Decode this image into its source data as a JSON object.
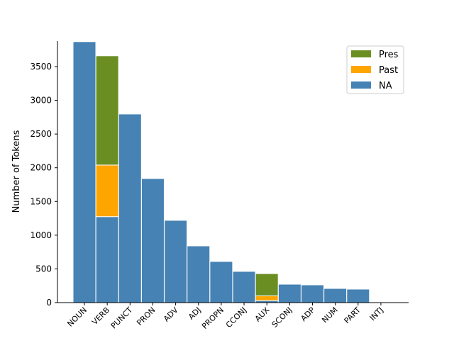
{
  "chart_data": {
    "type": "bar",
    "stacked": true,
    "title": "",
    "xlabel": "",
    "ylabel": "Number of Tokens",
    "ylim": [
      0,
      3870
    ],
    "yticks": [
      0,
      500,
      1000,
      1500,
      2000,
      2500,
      3000,
      3500
    ],
    "categories": [
      "NOUN",
      "VERB",
      "PUNCT",
      "PRON",
      "ADV",
      "ADJ",
      "PROPN",
      "CCONJ",
      "AUX",
      "SCONJ",
      "ADP",
      "NUM",
      "PART",
      "INTJ"
    ],
    "series": [
      {
        "name": "NA",
        "color": "#4682b4",
        "values": [
          3870,
          1275,
          2797,
          1840,
          1220,
          841,
          610,
          463,
          30,
          273,
          263,
          210,
          200,
          0
        ]
      },
      {
        "name": "Past",
        "color": "#ffa500",
        "values": [
          0,
          765,
          0,
          0,
          0,
          0,
          0,
          0,
          70,
          0,
          0,
          0,
          0,
          0
        ]
      },
      {
        "name": "Pres",
        "color": "#6b8e23",
        "values": [
          0,
          1620,
          0,
          0,
          0,
          0,
          0,
          0,
          330,
          0,
          0,
          0,
          0,
          0
        ]
      }
    ],
    "legend": {
      "placement": "top-right",
      "order": [
        "Pres",
        "Past",
        "NA"
      ]
    },
    "grid": false
  }
}
